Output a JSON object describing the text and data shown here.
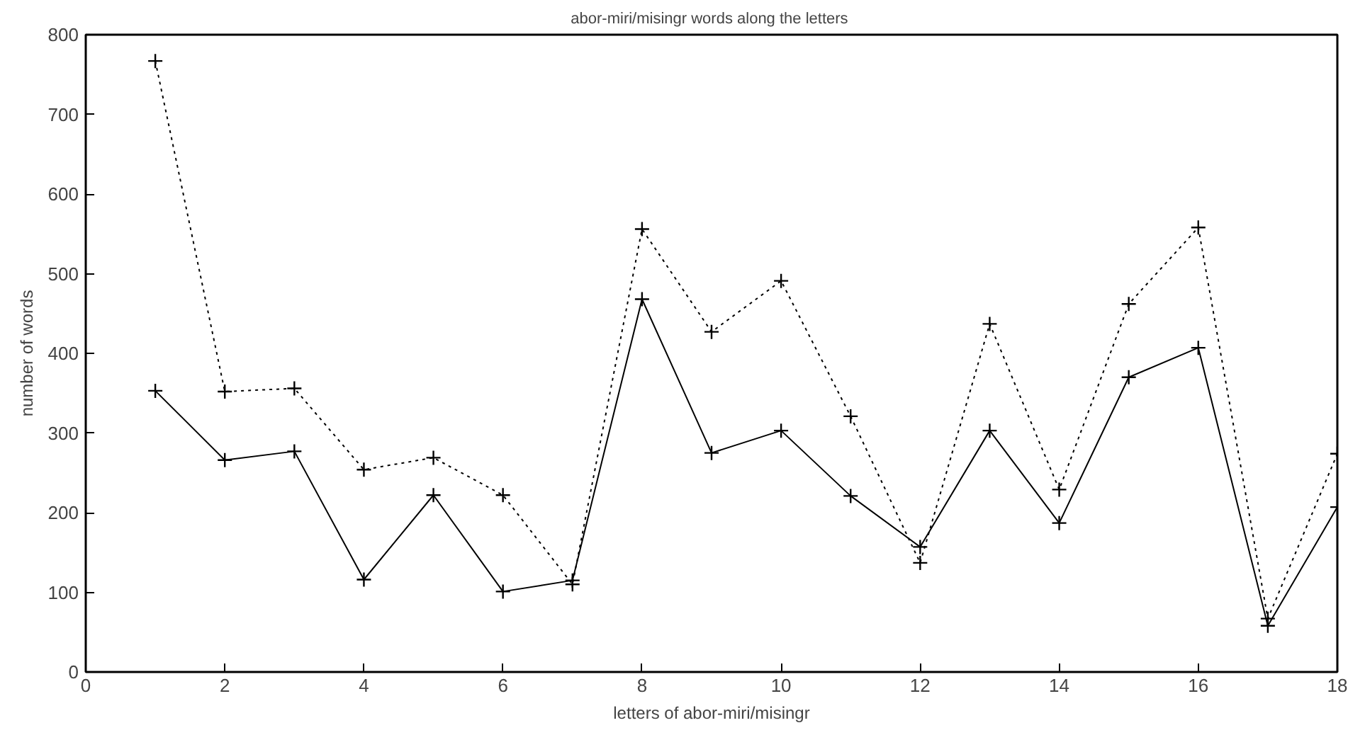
{
  "chart_data": {
    "type": "line",
    "title": "abor-miri/misingr  words along the letters",
    "xlabel": "letters of abor-miri/misingr",
    "ylabel": "number of words",
    "x": [
      1,
      2,
      3,
      4,
      5,
      6,
      7,
      8,
      9,
      10,
      11,
      12,
      13,
      14,
      15,
      16,
      17,
      18
    ],
    "series": [
      {
        "color": "#000000",
        "line_style": "solid",
        "values": [
          353,
          266,
          277,
          116,
          222,
          101,
          115,
          468,
          275,
          303,
          221,
          157,
          303,
          187,
          370,
          407,
          58,
          207
        ]
      },
      {
        "color": "#000000",
        "line_style": "dotted",
        "values": [
          767,
          352,
          356,
          254,
          269,
          222,
          110,
          556,
          427,
          491,
          321,
          137,
          437,
          229,
          462,
          558,
          67,
          274
        ]
      }
    ],
    "marker": "cross",
    "grid": false,
    "xlim": [
      0,
      18
    ],
    "ylim": [
      0,
      800
    ],
    "xticks": [
      0,
      2,
      4,
      6,
      8,
      10,
      12,
      14,
      16,
      18
    ],
    "yticks": [
      0,
      100,
      200,
      300,
      400,
      500,
      600,
      700,
      800
    ]
  }
}
